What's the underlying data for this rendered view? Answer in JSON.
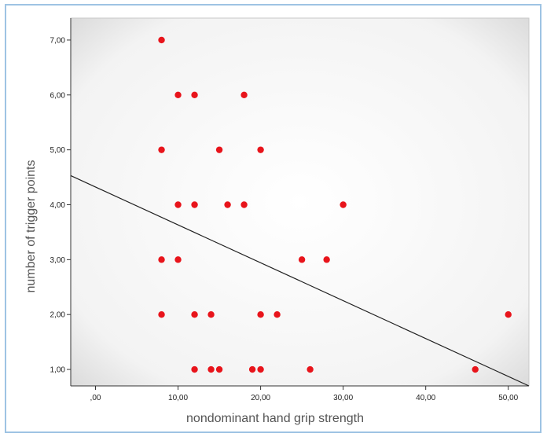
{
  "chart_data": {
    "type": "scatter",
    "xlabel": "nondominant hand grip strength",
    "ylabel": "number of trigger points",
    "xlim": [
      -3,
      52.5
    ],
    "ylim": [
      0.7,
      7.4
    ],
    "x_ticks": [
      0,
      10,
      20,
      30,
      40,
      50
    ],
    "x_tick_labels": [
      ",00",
      "10,00",
      "20,00",
      "30,00",
      "40,00",
      "50,00"
    ],
    "y_ticks": [
      1,
      2,
      3,
      4,
      5,
      6,
      7
    ],
    "y_tick_labels": [
      "1,00",
      "2,00",
      "3,00",
      "4,00",
      "5,00",
      "6,00",
      "7,00"
    ],
    "point_color": "#e8141b",
    "points": [
      {
        "x": 8,
        "y": 7
      },
      {
        "x": 10,
        "y": 6
      },
      {
        "x": 12,
        "y": 6
      },
      {
        "x": 18,
        "y": 6
      },
      {
        "x": 8,
        "y": 5
      },
      {
        "x": 15,
        "y": 5
      },
      {
        "x": 20,
        "y": 5
      },
      {
        "x": 10,
        "y": 4
      },
      {
        "x": 12,
        "y": 4
      },
      {
        "x": 16,
        "y": 4
      },
      {
        "x": 18,
        "y": 4
      },
      {
        "x": 30,
        "y": 4
      },
      {
        "x": 8,
        "y": 3
      },
      {
        "x": 10,
        "y": 3
      },
      {
        "x": 25,
        "y": 3
      },
      {
        "x": 28,
        "y": 3
      },
      {
        "x": 8,
        "y": 2
      },
      {
        "x": 12,
        "y": 2
      },
      {
        "x": 14,
        "y": 2
      },
      {
        "x": 20,
        "y": 2
      },
      {
        "x": 22,
        "y": 2
      },
      {
        "x": 50,
        "y": 2
      },
      {
        "x": 12,
        "y": 1
      },
      {
        "x": 14,
        "y": 1
      },
      {
        "x": 15,
        "y": 1
      },
      {
        "x": 19,
        "y": 1
      },
      {
        "x": 20,
        "y": 1
      },
      {
        "x": 26,
        "y": 1
      },
      {
        "x": 46,
        "y": 1
      }
    ],
    "fit_line": {
      "x": [
        -3,
        52.5
      ],
      "y": [
        4.53,
        0.7
      ]
    },
    "grid": false,
    "legend": "none"
  }
}
